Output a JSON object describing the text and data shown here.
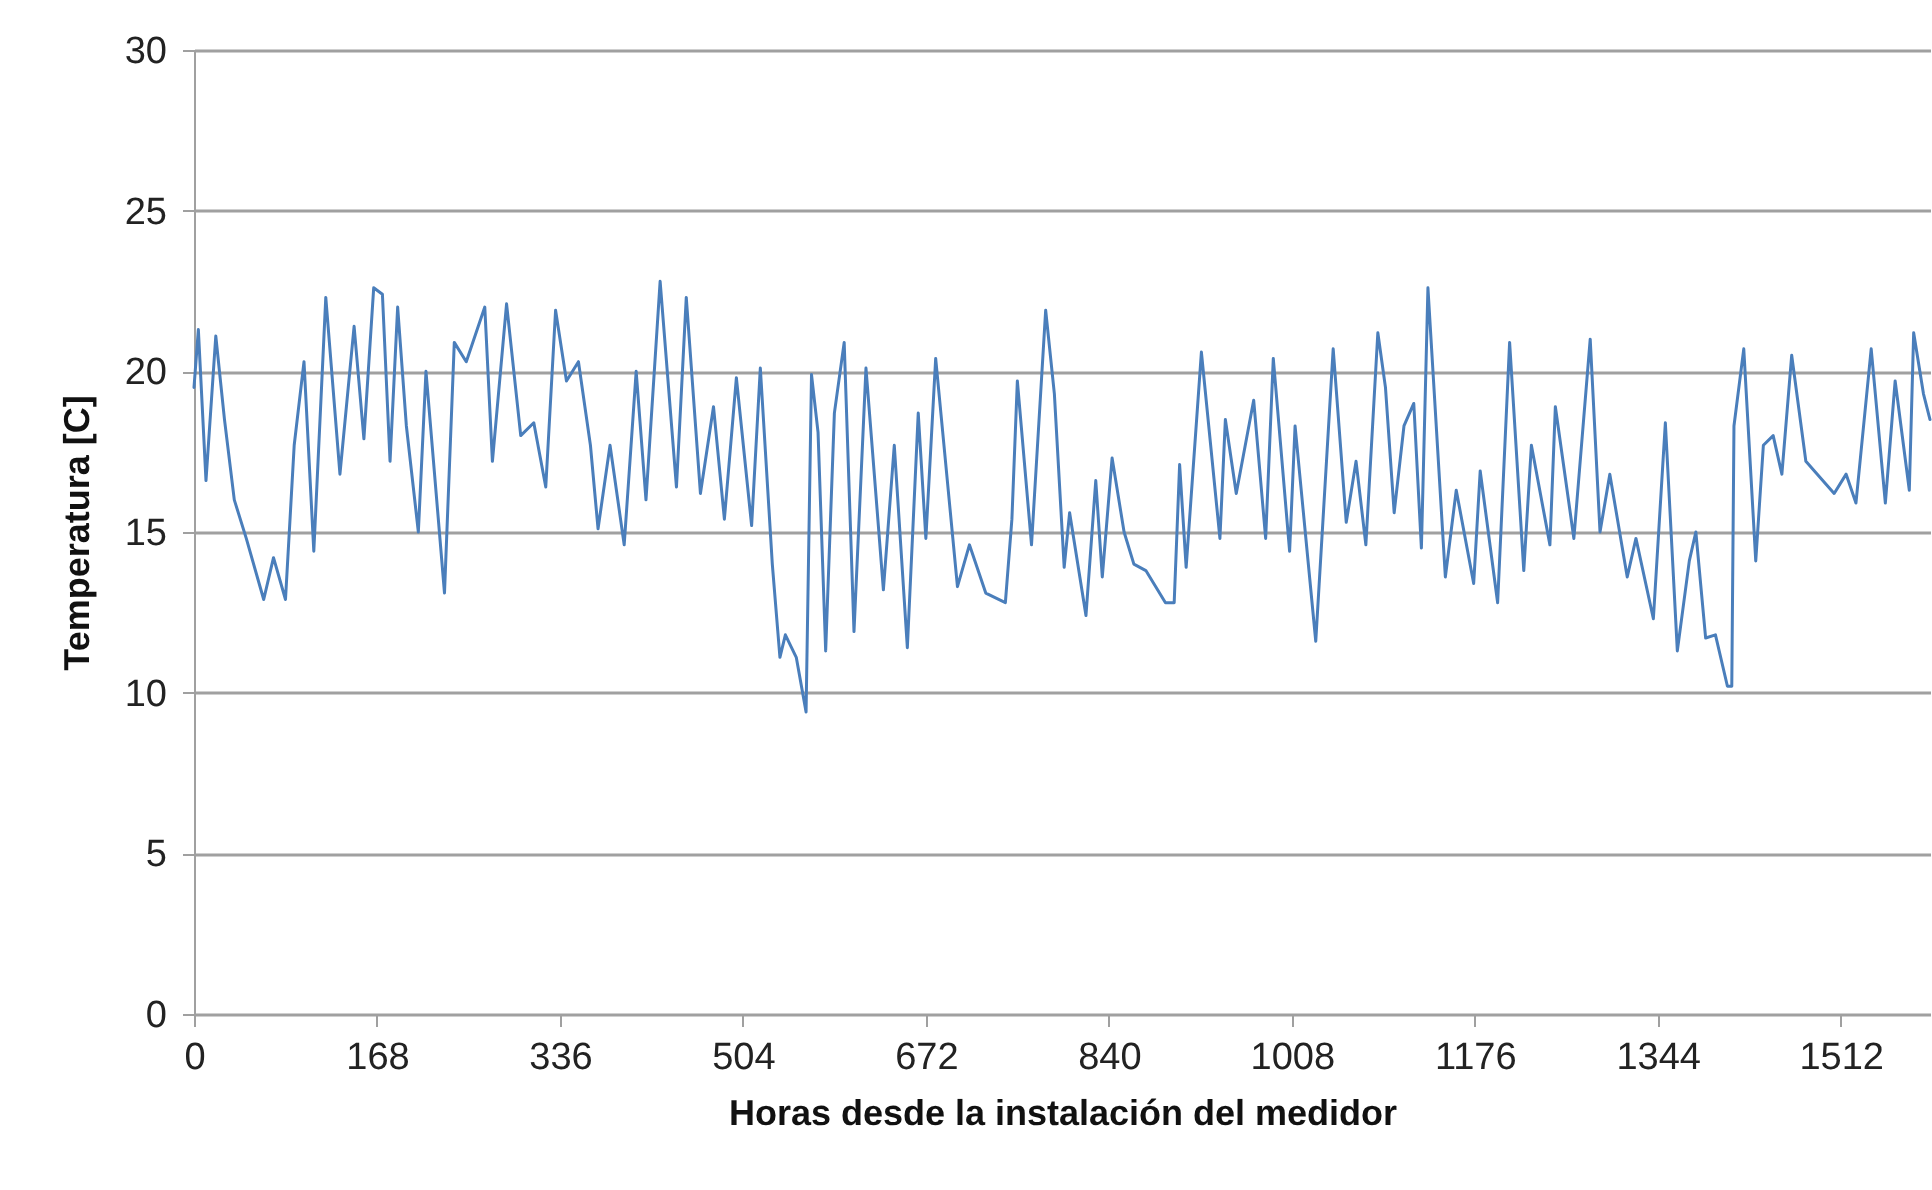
{
  "chart_data": {
    "type": "line",
    "xlabel": "Horas desde la instalación del medidor",
    "ylabel": "Temperatura [C]",
    "xlim": [
      0,
      1594
    ],
    "xticks": [
      0,
      168,
      336,
      504,
      672,
      840,
      1008,
      1176,
      1344,
      1512
    ],
    "ylim": [
      0,
      30
    ],
    "yticks": [
      0,
      5,
      10,
      15,
      20,
      25,
      30
    ],
    "grid": "y",
    "series": [
      {
        "color": "#4a7ebb",
        "x": [
          0,
          4,
          11,
          20,
          28,
          37,
          48,
          64,
          73,
          84,
          92,
          101,
          110,
          121,
          134,
          147,
          156,
          165,
          173,
          180,
          187,
          195,
          206,
          213,
          230,
          239,
          250,
          267,
          274,
          287,
          300,
          312,
          323,
          332,
          342,
          353,
          364,
          371,
          382,
          395,
          406,
          415,
          428,
          443,
          452,
          465,
          477,
          487,
          498,
          512,
          520,
          531,
          538,
          543,
          553,
          562,
          567,
          573,
          580,
          588,
          597,
          606,
          617,
          633,
          643,
          655,
          665,
          672,
          681,
          701,
          712,
          727,
          745,
          751,
          756,
          769,
          782,
          790,
          799,
          804,
          819,
          828,
          834,
          843,
          854,
          863,
          874,
          892,
          900,
          905,
          911,
          925,
          942,
          947,
          957,
          973,
          984,
          991,
          1006,
          1011,
          1030,
          1046,
          1058,
          1067,
          1076,
          1087,
          1094,
          1102,
          1111,
          1120,
          1127,
          1133,
          1149,
          1159,
          1175,
          1181,
          1197,
          1208,
          1221,
          1228,
          1245,
          1250,
          1267,
          1282,
          1291,
          1300,
          1316,
          1324,
          1340,
          1351,
          1362,
          1373,
          1379,
          1388,
          1397,
          1408,
          1412,
          1414,
          1423,
          1434,
          1441,
          1450,
          1458,
          1467,
          1480,
          1506,
          1517,
          1526,
          1540,
          1553,
          1562,
          1575,
          1579,
          1588,
          1594
        ],
        "values": [
          19.5,
          21.3,
          16.6,
          21.1,
          18.5,
          16.0,
          14.8,
          12.9,
          14.2,
          12.9,
          17.7,
          20.3,
          14.4,
          22.3,
          16.8,
          21.4,
          17.9,
          22.6,
          22.4,
          17.2,
          22.0,
          18.3,
          15.0,
          20.0,
          13.1,
          20.9,
          20.3,
          22.0,
          17.2,
          22.1,
          18.0,
          18.4,
          16.4,
          21.9,
          19.7,
          20.3,
          17.7,
          15.1,
          17.7,
          14.6,
          20.0,
          16.0,
          22.8,
          16.4,
          22.3,
          16.2,
          18.9,
          15.4,
          19.8,
          15.2,
          20.1,
          14.0,
          11.1,
          11.8,
          11.1,
          9.4,
          19.9,
          18.1,
          11.3,
          18.7,
          20.9,
          11.9,
          20.1,
          13.2,
          17.7,
          11.4,
          18.7,
          14.8,
          20.4,
          13.3,
          14.6,
          13.1,
          12.8,
          15.4,
          19.7,
          14.6,
          21.9,
          19.3,
          13.9,
          15.6,
          12.4,
          16.6,
          13.6,
          17.3,
          15.0,
          14.0,
          13.8,
          12.8,
          12.8,
          17.1,
          13.9,
          20.6,
          14.8,
          18.5,
          16.2,
          19.1,
          14.8,
          20.4,
          14.4,
          18.3,
          11.6,
          20.7,
          15.3,
          17.2,
          14.6,
          21.2,
          19.5,
          15.6,
          18.3,
          19.0,
          14.5,
          22.6,
          13.6,
          16.3,
          13.4,
          16.9,
          12.8,
          20.9,
          13.8,
          17.7,
          14.6,
          18.9,
          14.8,
          21.0,
          15.0,
          16.8,
          13.6,
          14.8,
          12.3,
          18.4,
          11.3,
          14.1,
          15.0,
          11.7,
          11.8,
          10.2,
          10.2,
          18.3,
          20.7,
          14.1,
          17.7,
          18.0,
          16.8,
          20.5,
          17.2,
          16.2,
          16.8,
          15.9,
          20.7,
          15.9,
          19.7,
          16.3,
          21.2,
          19.3,
          18.5
        ]
      }
    ]
  }
}
